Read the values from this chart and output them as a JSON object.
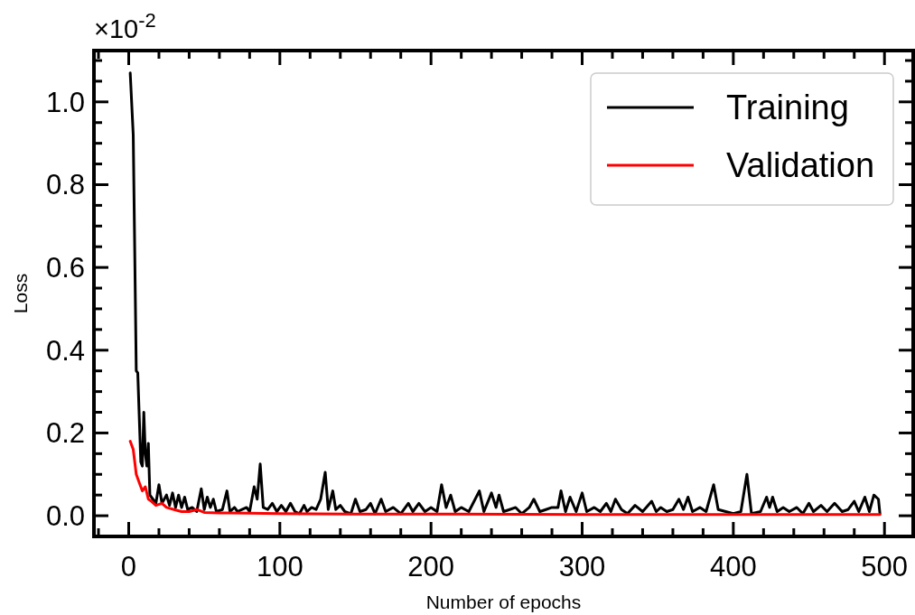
{
  "chart_data": {
    "type": "line",
    "xlabel": "Number of epochs",
    "ylabel": "Loss",
    "annotations": [
      "×10$^{-2}$"
    ],
    "xlim": [
      -23,
      519
    ],
    "ylim": [
      -0.05,
      1.124
    ],
    "xticks": [
      0,
      {
        "value": 20,
        "label": null
      },
      {
        "value": 40,
        "label": null
      },
      {
        "value": 60,
        "label": null
      },
      {
        "value": 80,
        "label": null
      },
      100,
      {
        "value": 120,
        "label": null
      },
      {
        "value": 140,
        "label": null
      },
      {
        "value": 160,
        "label": null
      },
      {
        "value": 180,
        "label": null
      },
      200,
      {
        "value": 220,
        "label": null
      },
      {
        "value": 240,
        "label": null
      },
      {
        "value": 260,
        "label": null
      },
      {
        "value": 280,
        "label": null
      },
      300,
      {
        "value": 320,
        "label": null
      },
      {
        "value": 340,
        "label": null
      },
      {
        "value": 360,
        "label": null
      },
      {
        "value": 380,
        "label": null
      },
      400,
      {
        "value": 420,
        "label": null
      },
      {
        "value": 440,
        "label": null
      },
      {
        "value": 460,
        "label": null
      },
      {
        "value": 480,
        "label": null
      },
      500,
      {
        "value": -20,
        "label": null
      }
    ],
    "yticks": [
      {
        "value": 0,
        "label": "0.0"
      },
      {
        "value": 0.05,
        "label": null
      },
      {
        "value": 0.1,
        "label": null
      },
      {
        "value": 0.15,
        "label": null
      },
      {
        "value": 0.2,
        "label": "0.2"
      },
      {
        "value": 0.25,
        "label": null
      },
      {
        "value": 0.3,
        "label": null
      },
      {
        "value": 0.35,
        "label": null
      },
      {
        "value": 0.4,
        "label": "0.4"
      },
      {
        "value": 0.45,
        "label": null
      },
      {
        "value": 0.5,
        "label": null
      },
      {
        "value": 0.55,
        "label": null
      },
      {
        "value": 0.6,
        "label": "0.6"
      },
      {
        "value": 0.65,
        "label": null
      },
      {
        "value": 0.7,
        "label": null
      },
      {
        "value": 0.75,
        "label": null
      },
      {
        "value": 0.8,
        "label": "0.8"
      },
      {
        "value": 0.85,
        "label": null
      },
      {
        "value": 0.9,
        "label": null
      },
      {
        "value": 0.95,
        "label": null
      },
      {
        "value": 1.0,
        "label": "1.0"
      },
      {
        "value": 1.05,
        "label": null
      },
      {
        "value": 1.1,
        "label": null
      }
    ],
    "legend": "top right",
    "grid": false,
    "series": [
      {
        "name": "Training",
        "color": "#000000",
        "x": [
          1,
          3,
          5,
          6,
          8,
          9,
          10,
          11,
          12,
          13,
          14,
          16,
          18,
          20,
          22,
          25,
          27,
          29,
          31,
          33,
          35,
          37,
          39,
          42,
          45,
          48,
          50,
          52,
          54,
          56,
          58,
          62,
          65,
          67,
          70,
          72,
          75,
          78,
          80,
          83,
          85,
          87,
          89,
          92,
          95,
          98,
          101,
          104,
          107,
          110,
          113,
          116,
          118,
          121,
          124,
          127,
          130,
          132,
          135,
          137,
          140,
          143,
          147,
          150,
          153,
          157,
          160,
          163,
          167,
          170,
          175,
          180,
          185,
          188,
          192,
          196,
          200,
          204,
          207,
          210,
          213,
          216,
          220,
          225,
          232,
          235,
          240,
          243,
          245,
          248,
          252,
          256,
          260,
          265,
          268,
          272,
          276,
          280,
          284,
          286,
          289,
          292,
          296,
          300,
          303,
          308,
          312,
          316,
          319,
          322,
          326,
          330,
          335,
          340,
          346,
          349,
          352,
          356,
          360,
          364,
          367,
          370,
          373,
          378,
          382,
          387,
          390,
          395,
          400,
          405,
          409,
          412,
          418,
          422,
          424,
          426,
          429,
          433,
          437,
          442,
          446,
          450,
          453,
          458,
          462,
          467,
          472,
          476,
          480,
          483,
          487,
          490,
          493,
          496,
          497
        ],
        "values": [
          1.07,
          0.92,
          0.35,
          0.345,
          0.13,
          0.12,
          0.25,
          0.15,
          0.12,
          0.175,
          0.05,
          0.04,
          0.03,
          0.075,
          0.03,
          0.05,
          0.025,
          0.055,
          0.02,
          0.05,
          0.02,
          0.045,
          0.015,
          0.02,
          0.01,
          0.065,
          0.015,
          0.045,
          0.02,
          0.04,
          0.01,
          0.015,
          0.06,
          0.01,
          0.02,
          0.01,
          0.015,
          0.02,
          0.01,
          0.07,
          0.04,
          0.125,
          0.02,
          0.015,
          0.03,
          0.01,
          0.025,
          0.01,
          0.03,
          0.01,
          0.005,
          0.025,
          0.01,
          0.02,
          0.015,
          0.04,
          0.105,
          0.015,
          0.06,
          0.015,
          0.025,
          0.01,
          0.005,
          0.04,
          0.01,
          0.015,
          0.03,
          0.005,
          0.04,
          0.01,
          0.02,
          0.005,
          0.03,
          0.01,
          0.03,
          0.01,
          0.02,
          0.01,
          0.075,
          0.02,
          0.05,
          0.01,
          0.02,
          0.01,
          0.06,
          0.01,
          0.055,
          0.02,
          0.05,
          0.01,
          0.015,
          0.02,
          0.005,
          0.02,
          0.04,
          0.01,
          0.015,
          0.02,
          0.02,
          0.06,
          0.01,
          0.045,
          0.01,
          0.055,
          0.01,
          0.02,
          0.01,
          0.03,
          0.01,
          0.04,
          0.015,
          0.005,
          0.025,
          0.01,
          0.035,
          0.01,
          0.02,
          0.01,
          0.015,
          0.04,
          0.015,
          0.045,
          0.01,
          0.02,
          0.01,
          0.075,
          0.015,
          0.01,
          0.005,
          0.01,
          0.1,
          0.005,
          0.01,
          0.045,
          0.02,
          0.045,
          0.01,
          0.02,
          0.01,
          0.02,
          0.005,
          0.03,
          0.01,
          0.025,
          0.01,
          0.03,
          0.01,
          0.015,
          0.035,
          0.01,
          0.045,
          0.01,
          0.05,
          0.04,
          0.005
        ]
      },
      {
        "name": "Validation",
        "color": "#ff0000",
        "x": [
          1,
          3,
          5,
          7,
          9,
          11,
          13,
          15,
          18,
          22,
          25,
          30,
          35,
          40,
          45,
          50,
          60,
          80,
          100,
          150,
          200,
          300,
          400,
          497
        ],
        "values": [
          0.18,
          0.16,
          0.1,
          0.08,
          0.06,
          0.07,
          0.04,
          0.035,
          0.025,
          0.03,
          0.02,
          0.015,
          0.01,
          0.01,
          0.015,
          0.008,
          0.007,
          0.006,
          0.005,
          0.004,
          0.004,
          0.003,
          0.003,
          0.003
        ]
      }
    ]
  }
}
